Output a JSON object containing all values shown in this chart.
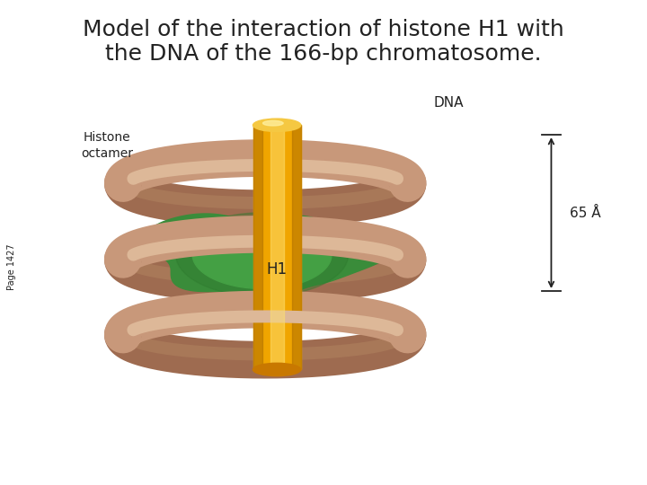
{
  "title_line1": "Model of the interaction of histone H1 with",
  "title_line2": "the DNA of the 166-bp chromatosome.",
  "title_fontsize": 18,
  "bg_color": "#ffffff",
  "dna_color": "#c8987a",
  "dna_shadow_color": "#9e6b50",
  "dna_highlight_color": "#ddb898",
  "h1_color_top": "#f5c842",
  "h1_color_mid": "#f0a500",
  "h1_color_bottom": "#e08c00",
  "octamer_color": "#3a8c3a",
  "octamer_highlight": "#5cb85c",
  "label_dna": "DNA",
  "label_h1": "H1",
  "label_histone": "Histone\noctamer",
  "label_65A": "65 Å",
  "label_page": "Page 1427",
  "text_color": "#222222"
}
